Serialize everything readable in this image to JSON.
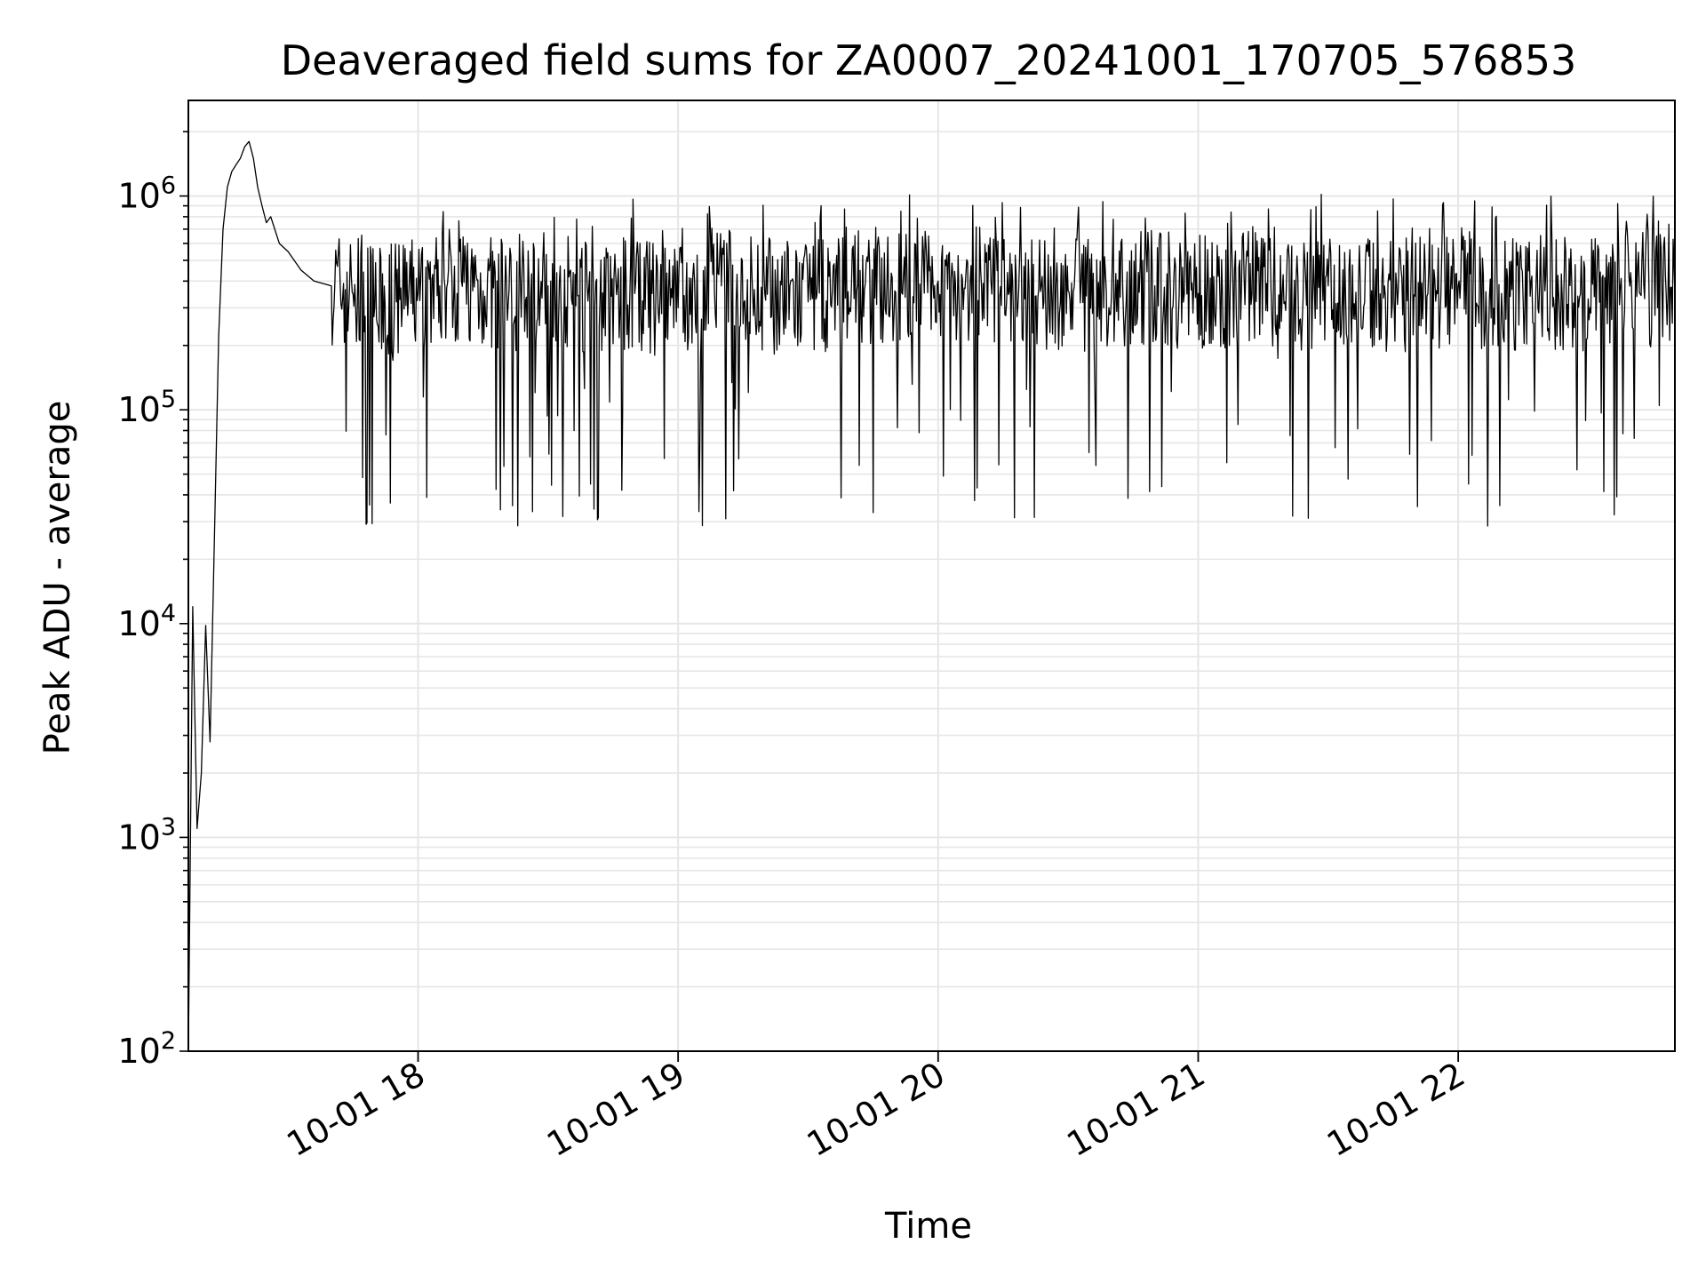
{
  "chart_data": {
    "type": "line",
    "title": "Deaveraged field sums for ZA0007_20241001_170705_576853",
    "xlabel": "Time",
    "ylabel": "Peak ADU - average",
    "yscale": "log",
    "xlim": [
      "2024-10-01 17:07",
      "2024-10-01 22:50"
    ],
    "ylim": [
      100,
      2800000
    ],
    "x_ticks": [
      "10-01 18",
      "10-01 19",
      "10-01 20",
      "10-01 21",
      "10-01 22"
    ],
    "y_ticks": [
      {
        "base": "10",
        "exp": "2"
      },
      {
        "base": "10",
        "exp": "3"
      },
      {
        "base": "10",
        "exp": "4"
      },
      {
        "base": "10",
        "exp": "5"
      },
      {
        "base": "10",
        "exp": "6"
      }
    ],
    "grid": true,
    "line_color": "#000000",
    "grid_color": "#e6e6e6",
    "series": [
      {
        "x": [
          "17:07",
          "17:08",
          "17:09",
          "17:10",
          "17:11",
          "17:12",
          "17:13",
          "17:14",
          "17:15",
          "17:16",
          "17:17",
          "17:18",
          "17:19",
          "17:20",
          "17:21",
          "17:22",
          "17:23",
          "17:24",
          "17:25",
          "17:26",
          "17:28",
          "17:30",
          "17:33",
          "17:36",
          "17:40",
          "17:45",
          "17:50",
          "17:55",
          "18:00",
          "18:05",
          "18:10",
          "18:15",
          "18:20",
          "18:30",
          "18:40",
          "18:50",
          "19:00",
          "19:10",
          "19:20",
          "19:30",
          "19:40",
          "19:50",
          "20:00",
          "20:10",
          "20:20",
          "20:30",
          "20:40",
          "20:50",
          "21:00",
          "21:10",
          "21:20",
          "21:30",
          "21:40",
          "21:50",
          "22:00",
          "22:10",
          "22:20",
          "22:30",
          "22:40",
          "22:50"
        ],
        "y": [
          100,
          12000,
          1100,
          2000,
          9800,
          2800,
          25000,
          220000,
          700000,
          1100000,
          1300000,
          1400000,
          1500000,
          1700000,
          1800000,
          1500000,
          1100000,
          900000,
          750000,
          800000,
          600000,
          550000,
          450000,
          400000,
          380000,
          350000,
          300000,
          320000,
          350000,
          380000,
          400000,
          360000,
          340000,
          380000,
          330000,
          350000,
          300000,
          380000,
          350000,
          320000,
          380000,
          360000,
          400000,
          380000,
          330000,
          360000,
          340000,
          380000,
          350000,
          370000,
          320000,
          380000,
          360000,
          340000,
          380000,
          350000,
          360000,
          330000,
          380000,
          350000
        ]
      }
    ]
  }
}
